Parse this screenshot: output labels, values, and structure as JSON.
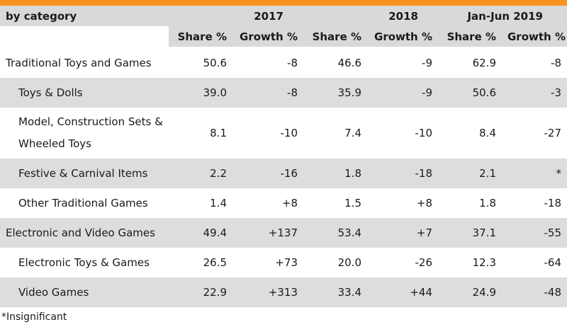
{
  "header": {
    "category_label": "by category",
    "periods": [
      "2017",
      "2018",
      "Jan-Jun 2019"
    ],
    "share_label": "Share %",
    "growth_label": "Growth %"
  },
  "rows": [
    {
      "label": "Traditional Toys and Games",
      "level": 0,
      "values": [
        "50.6",
        "-8",
        "46.6",
        "-9",
        "62.9",
        "-8"
      ]
    },
    {
      "label": "Toys & Dolls",
      "level": 1,
      "values": [
        "39.0",
        "-8",
        "35.9",
        "-9",
        "50.6",
        "-3"
      ]
    },
    {
      "label": "Model, Construction Sets & Wheeled Toys",
      "level": 1,
      "values": [
        "8.1",
        "-10",
        "7.4",
        "-10",
        "8.4",
        "-27"
      ]
    },
    {
      "label": "Festive & Carnival Items",
      "level": 1,
      "values": [
        "2.2",
        "-16",
        "1.8",
        "-18",
        "2.1",
        "*"
      ]
    },
    {
      "label": "Other Traditional Games",
      "level": 1,
      "values": [
        "1.4",
        "+8",
        "1.5",
        "+8",
        "1.8",
        "-18"
      ]
    },
    {
      "label": "Electronic and Video Games",
      "level": 0,
      "values": [
        "49.4",
        "+137",
        "53.4",
        "+7",
        "37.1",
        "-55"
      ]
    },
    {
      "label": "Electronic Toys & Games",
      "level": 1,
      "values": [
        "26.5",
        "+73",
        "20.0",
        "-26",
        "12.3",
        "-64"
      ]
    },
    {
      "label": "Video Games",
      "level": 1,
      "values": [
        "22.9",
        "+313",
        "33.4",
        "+44",
        "24.9",
        "-48"
      ]
    }
  ],
  "footnote": "*Insignificant",
  "colors": {
    "accent_bar": "#f7931e",
    "header_bg": "#d9d9d9",
    "row_shade": "#dddddd"
  }
}
